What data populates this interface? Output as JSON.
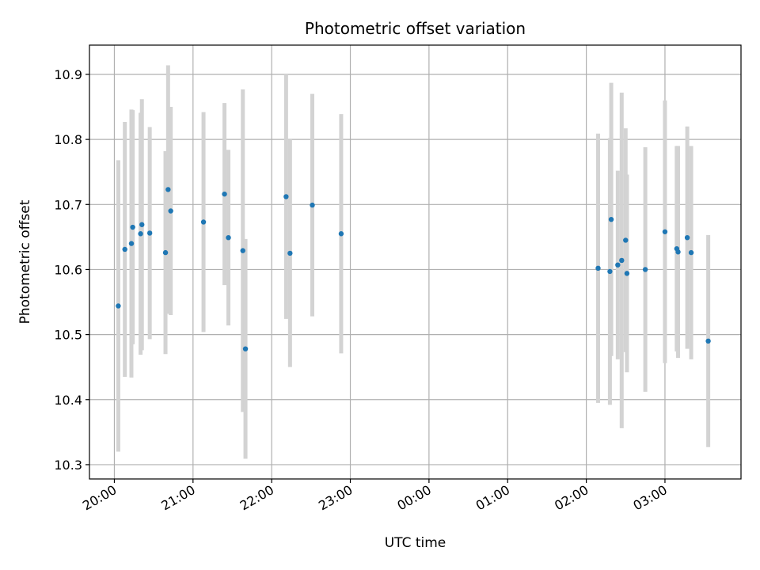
{
  "chart_data": {
    "type": "scatter",
    "title": "Photometric offset variation",
    "xlabel": "UTC time",
    "ylabel": "Photometric offset",
    "x_ticks": [
      "20:00",
      "21:00",
      "22:00",
      "23:00",
      "00:00",
      "01:00",
      "02:00",
      "03:00"
    ],
    "x_tick_minutes": [
      0,
      60,
      120,
      180,
      240,
      300,
      360,
      420
    ],
    "y_ticks": [
      10.3,
      10.4,
      10.5,
      10.6,
      10.7,
      10.8,
      10.9
    ],
    "xlim_minutes": [
      -19,
      478
    ],
    "ylim": [
      10.278,
      10.945
    ],
    "grid": true,
    "colors": {
      "point": "#1f77b4",
      "errorbar": "#d3d3d3",
      "grid": "#b0b0b0"
    },
    "points": [
      {
        "t": 3,
        "y": 10.544,
        "err": 0.224
      },
      {
        "t": 8,
        "y": 10.631,
        "err": 0.196
      },
      {
        "t": 13,
        "y": 10.64,
        "err": 0.206
      },
      {
        "t": 14,
        "y": 10.665,
        "err": 0.18
      },
      {
        "t": 20,
        "y": 10.655,
        "err": 0.186
      },
      {
        "t": 21,
        "y": 10.669,
        "err": 0.193
      },
      {
        "t": 27,
        "y": 10.656,
        "err": 0.163
      },
      {
        "t": 39,
        "y": 10.626,
        "err": 0.156
      },
      {
        "t": 41,
        "y": 10.723,
        "err": 0.191
      },
      {
        "t": 43,
        "y": 10.69,
        "err": 0.16
      },
      {
        "t": 68,
        "y": 10.673,
        "err": 0.169
      },
      {
        "t": 84,
        "y": 10.716,
        "err": 0.14
      },
      {
        "t": 87,
        "y": 10.649,
        "err": 0.135
      },
      {
        "t": 98,
        "y": 10.629,
        "err": 0.248
      },
      {
        "t": 100,
        "y": 10.478,
        "err": 0.169
      },
      {
        "t": 131,
        "y": 10.712,
        "err": 0.188
      },
      {
        "t": 134,
        "y": 10.625,
        "err": 0.175
      },
      {
        "t": 151,
        "y": 10.699,
        "err": 0.171
      },
      {
        "t": 173,
        "y": 10.655,
        "err": 0.184
      },
      {
        "t": 369,
        "y": 10.602,
        "err": 0.207
      },
      {
        "t": 378,
        "y": 10.597,
        "err": 0.205
      },
      {
        "t": 379,
        "y": 10.677,
        "err": 0.21
      },
      {
        "t": 384,
        "y": 10.607,
        "err": 0.145
      },
      {
        "t": 387,
        "y": 10.614,
        "err": 0.258
      },
      {
        "t": 390,
        "y": 10.645,
        "err": 0.172
      },
      {
        "t": 391,
        "y": 10.594,
        "err": 0.152
      },
      {
        "t": 405,
        "y": 10.6,
        "err": 0.188
      },
      {
        "t": 420,
        "y": 10.658,
        "err": 0.202
      },
      {
        "t": 429,
        "y": 10.632,
        "err": 0.158
      },
      {
        "t": 430,
        "y": 10.627,
        "err": 0.163
      },
      {
        "t": 437,
        "y": 10.649,
        "err": 0.171
      },
      {
        "t": 440,
        "y": 10.626,
        "err": 0.164
      },
      {
        "t": 453,
        "y": 10.49,
        "err": 0.163
      }
    ]
  }
}
